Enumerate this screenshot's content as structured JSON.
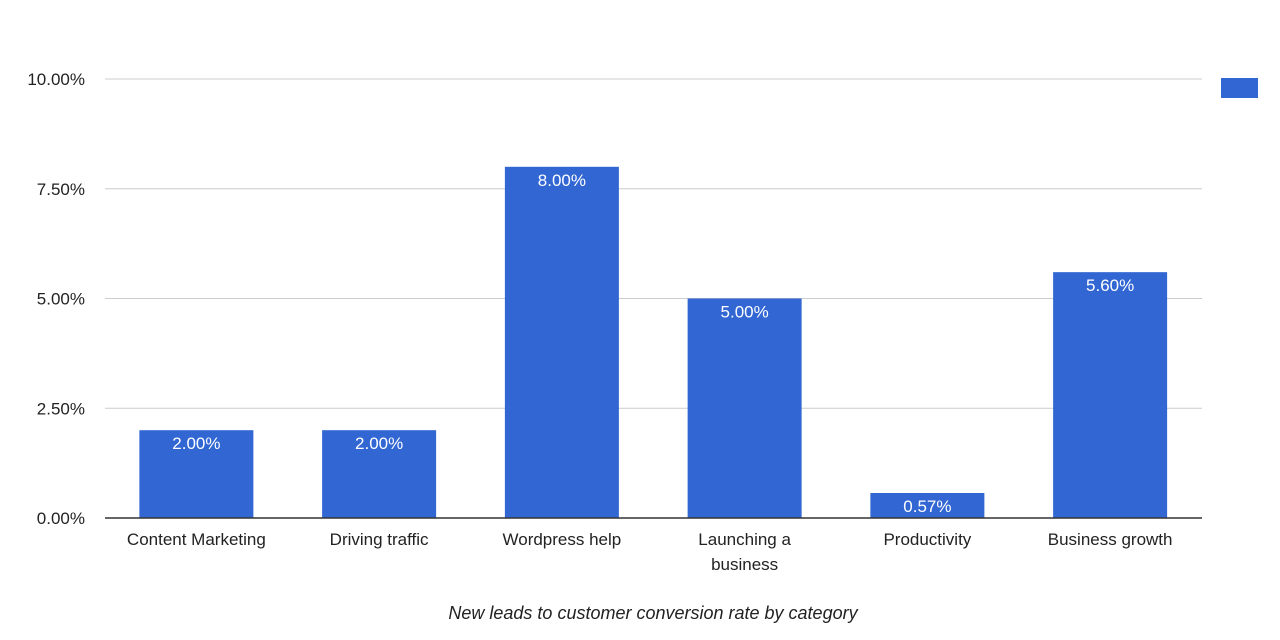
{
  "chart_data": {
    "type": "bar",
    "categories": [
      [
        "Content Marketing"
      ],
      [
        "Driving traffic"
      ],
      [
        "Wordpress help"
      ],
      [
        "Launching a",
        "business"
      ],
      [
        "Productivity"
      ],
      [
        "Business growth"
      ]
    ],
    "values": [
      2.0,
      2.0,
      8.0,
      5.0,
      0.57,
      5.6
    ],
    "data_labels": [
      "2.00%",
      "2.00%",
      "8.00%",
      "5.00%",
      "0.57%",
      "5.60%"
    ],
    "ylim": [
      0,
      10
    ],
    "yticks": [
      0,
      2.5,
      5,
      7.5,
      10
    ],
    "ytick_labels": [
      "0.00%",
      "2.50%",
      "5.00%",
      "7.50%",
      "10.00%"
    ],
    "xlabel": "New leads to customer conversion rate by category",
    "ylabel": "",
    "title": "",
    "grid": true,
    "legend": {
      "placement": "top-right",
      "entries": [
        ""
      ]
    },
    "colors": {
      "bar": "#3166d3",
      "grid": "#cccccc",
      "axis": "#333333"
    }
  }
}
